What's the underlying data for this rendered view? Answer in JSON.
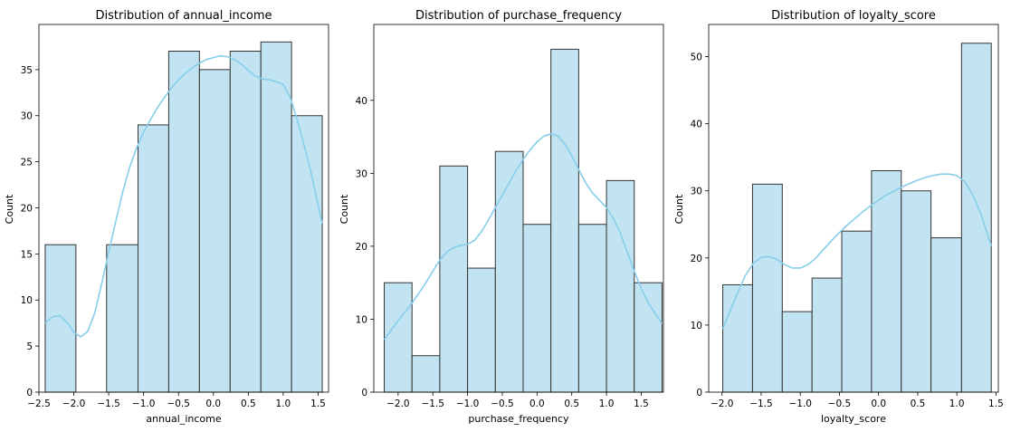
{
  "colors": {
    "bar_fill": "#c2e4f2",
    "bar_edge": "#333333",
    "kde_line": "#87ceeb",
    "axis": "#000000"
  },
  "chart_data": [
    {
      "type": "bar",
      "subtype": "histogram-with-kde",
      "title": "Distribution of annual_income",
      "xlabel": "annual_income",
      "ylabel": "Count",
      "xlim": [
        -2.5,
        1.65
      ],
      "ylim": [
        0,
        39.9
      ],
      "xticks": [
        -2.5,
        -2.0,
        -1.5,
        -1.0,
        -0.5,
        0.0,
        0.5,
        1.0,
        1.5
      ],
      "xtick_labels": [
        "−2.5",
        "−2.0",
        "−1.5",
        "−1.0",
        "−0.5",
        "0.0",
        "0.5",
        "1.0",
        "1.5"
      ],
      "yticks": [
        0,
        5,
        10,
        15,
        20,
        25,
        30,
        35
      ],
      "ytick_labels": [
        "0",
        "5",
        "10",
        "15",
        "20",
        "25",
        "30",
        "35"
      ],
      "bin_edges": [
        -2.41,
        -1.97,
        -1.53,
        -1.08,
        -0.64,
        -0.2,
        0.24,
        0.68,
        1.12,
        1.56
      ],
      "values": [
        16,
        0,
        16,
        29,
        37,
        35,
        37,
        38,
        30
      ],
      "kde": {
        "x": [
          -2.41,
          -2.3,
          -2.2,
          -2.1,
          -2.0,
          -1.9,
          -1.8,
          -1.7,
          -1.6,
          -1.5,
          -1.4,
          -1.3,
          -1.2,
          -1.1,
          -1.0,
          -0.9,
          -0.8,
          -0.7,
          -0.6,
          -0.5,
          -0.4,
          -0.3,
          -0.2,
          -0.1,
          0.0,
          0.1,
          0.2,
          0.3,
          0.4,
          0.5,
          0.6,
          0.7,
          0.8,
          0.9,
          1.0,
          1.1,
          1.2,
          1.3,
          1.4,
          1.5,
          1.56
        ],
        "y": [
          7.5,
          8.2,
          8.3,
          7.6,
          6.5,
          6.0,
          6.6,
          8.6,
          11.8,
          15.2,
          18.5,
          21.7,
          24.4,
          26.5,
          28.2,
          29.6,
          30.9,
          32.0,
          33.0,
          33.9,
          34.6,
          35.2,
          35.7,
          36.1,
          36.3,
          36.5,
          36.4,
          36.1,
          35.6,
          34.9,
          34.3,
          34.0,
          33.9,
          33.7,
          33.4,
          32.0,
          29.6,
          26.8,
          23.8,
          20.3,
          18.3
        ]
      }
    },
    {
      "type": "bar",
      "subtype": "histogram-with-kde",
      "title": "Distribution of purchase_frequency",
      "xlabel": "purchase_frequency",
      "ylabel": "Count",
      "xlim": [
        -2.35,
        1.82
      ],
      "ylim": [
        0,
        50.4
      ],
      "xticks": [
        -2.0,
        -1.5,
        -1.0,
        -0.5,
        0.0,
        0.5,
        1.0,
        1.5
      ],
      "xtick_labels": [
        "−2.0",
        "−1.5",
        "−1.0",
        "−0.5",
        "0.0",
        "0.5",
        "1.0",
        "1.5"
      ],
      "yticks": [
        0,
        10,
        20,
        30,
        40
      ],
      "ytick_labels": [
        "0",
        "10",
        "20",
        "30",
        "40"
      ],
      "bin_edges": [
        -2.2,
        -1.8,
        -1.4,
        -1.0,
        -0.6,
        -0.2,
        0.2,
        0.6,
        1.0,
        1.4,
        1.8
      ],
      "values": [
        15,
        5,
        31,
        17,
        33,
        23,
        47,
        23,
        29,
        15
      ],
      "kde": {
        "x": [
          -2.2,
          -2.1,
          -2.0,
          -1.9,
          -1.8,
          -1.7,
          -1.6,
          -1.5,
          -1.4,
          -1.3,
          -1.2,
          -1.1,
          -1.0,
          -0.9,
          -0.8,
          -0.7,
          -0.6,
          -0.5,
          -0.4,
          -0.3,
          -0.2,
          -0.1,
          0.0,
          0.1,
          0.2,
          0.3,
          0.4,
          0.5,
          0.6,
          0.7,
          0.8,
          0.9,
          1.0,
          1.1,
          1.2,
          1.3,
          1.4,
          1.5,
          1.6,
          1.7,
          1.8
        ],
        "y": [
          7.2,
          8.5,
          9.8,
          11.0,
          12.2,
          13.6,
          15.0,
          16.6,
          18.1,
          19.2,
          19.8,
          20.1,
          20.3,
          20.8,
          22.0,
          23.6,
          25.3,
          27.0,
          28.7,
          30.4,
          31.9,
          33.2,
          34.3,
          35.1,
          35.4,
          35.1,
          34.0,
          32.4,
          30.5,
          28.7,
          27.3,
          26.3,
          25.3,
          23.8,
          21.8,
          19.2,
          16.6,
          14.2,
          12.3,
          10.8,
          9.4
        ]
      }
    },
    {
      "type": "bar",
      "subtype": "histogram-with-kde",
      "title": "Distribution of loyalty_score",
      "xlabel": "loyalty_score",
      "ylabel": "Count",
      "xlim": [
        -2.17,
        1.53
      ],
      "ylim": [
        0,
        54.8
      ],
      "xticks": [
        -2.0,
        -1.5,
        -1.0,
        -0.5,
        0.0,
        0.5,
        1.0,
        1.5
      ],
      "xtick_labels": [
        "−2.0",
        "−1.5",
        "−1.0",
        "−0.5",
        "0.0",
        "0.5",
        "1.0",
        "1.5"
      ],
      "yticks": [
        0,
        10,
        20,
        30,
        40,
        50
      ],
      "ytick_labels": [
        "0",
        "10",
        "20",
        "30",
        "40",
        "50"
      ],
      "bin_edges": [
        -1.99,
        -1.61,
        -1.23,
        -0.85,
        -0.47,
        -0.09,
        0.29,
        0.67,
        1.06,
        1.44
      ],
      "values": [
        16,
        31,
        12,
        17,
        24,
        33,
        30,
        23,
        52
      ],
      "kde": {
        "x": [
          -1.99,
          -1.9,
          -1.8,
          -1.7,
          -1.6,
          -1.5,
          -1.4,
          -1.3,
          -1.2,
          -1.1,
          -1.0,
          -0.9,
          -0.8,
          -0.7,
          -0.6,
          -0.5,
          -0.4,
          -0.3,
          -0.2,
          -0.1,
          0.0,
          0.1,
          0.2,
          0.3,
          0.4,
          0.5,
          0.6,
          0.7,
          0.8,
          0.9,
          1.0,
          1.1,
          1.2,
          1.3,
          1.44
        ],
        "y": [
          9.4,
          12.0,
          14.8,
          17.4,
          19.2,
          20.1,
          20.2,
          19.8,
          19.0,
          18.5,
          18.5,
          19.0,
          20.0,
          21.3,
          22.6,
          23.8,
          24.9,
          25.9,
          26.9,
          27.8,
          28.6,
          29.4,
          30.0,
          30.6,
          31.1,
          31.6,
          32.0,
          32.3,
          32.5,
          32.5,
          32.3,
          31.4,
          29.5,
          26.8,
          21.8
        ]
      }
    }
  ]
}
